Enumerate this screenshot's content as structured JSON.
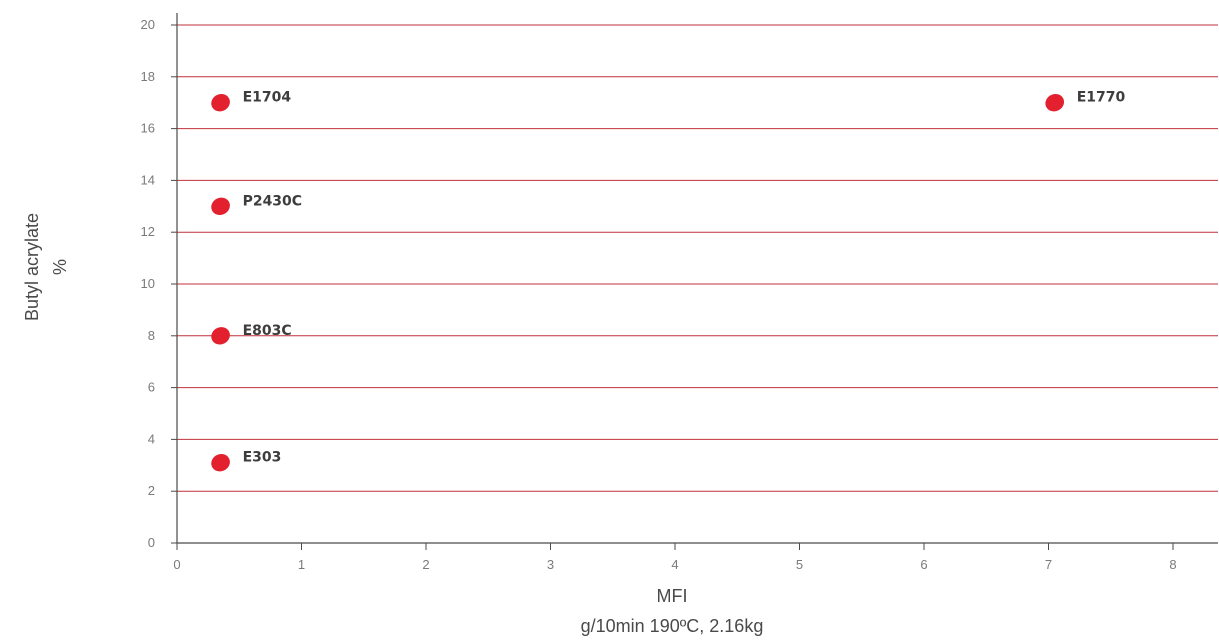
{
  "chart_data": {
    "type": "scatter",
    "title": "",
    "xlabel": "MFI",
    "xlabel_unit": "g/10min 190ºC, 2.16kg",
    "ylabel": "Butyl acrylate",
    "ylabel_unit": "%",
    "xlim": [
      0,
      8
    ],
    "ylim": [
      0,
      20
    ],
    "xticks": [
      "0",
      "1",
      "2",
      "3",
      "4",
      "5",
      "6",
      "7",
      "8"
    ],
    "yticks": [
      "0",
      "2",
      "4",
      "6",
      "8",
      "10",
      "12",
      "14",
      "16",
      "18",
      "20"
    ],
    "grid": "horizontal",
    "colors": {
      "point": "#e3202e",
      "grid": "#c0303a",
      "axis": "#4a4a4a"
    },
    "points": [
      {
        "label": "E1704",
        "x": 0.35,
        "y": 17
      },
      {
        "label": "E1770",
        "x": 7.05,
        "y": 17
      },
      {
        "label": "P2430C",
        "x": 0.35,
        "y": 13
      },
      {
        "label": "E803C",
        "x": 0.35,
        "y": 8
      },
      {
        "label": "E303",
        "x": 0.35,
        "y": 3.1
      }
    ]
  }
}
